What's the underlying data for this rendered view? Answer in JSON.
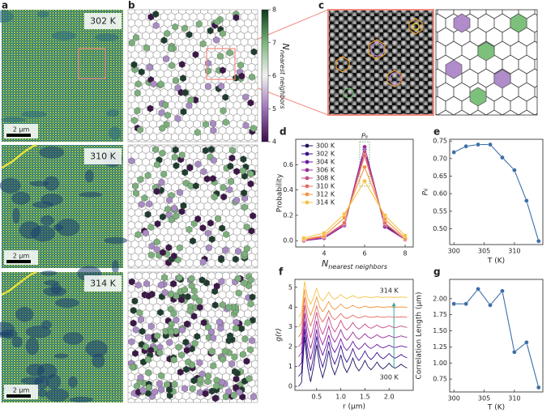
{
  "panels": {
    "a": {
      "label": "a",
      "temperatures": [
        "302 K",
        "310 K",
        "314 K"
      ],
      "scale_bar": "2 μm"
    },
    "b": {
      "label": "b"
    },
    "c": {
      "label": "c"
    }
  },
  "colorbar": {
    "label_main": "N",
    "label_sub": "nearest neighbors",
    "lim": [
      4,
      8
    ],
    "ticks": [
      4,
      5,
      6,
      7,
      8
    ],
    "colors": [
      "#3b0b4a",
      "#9d74b8",
      "#f2f2f2",
      "#7cb57c",
      "#0b3a1c"
    ]
  },
  "chart_data": [
    {
      "type": "line",
      "label": "d",
      "xlabel": {
        "main": "N",
        "sub": "nearest neighbors"
      },
      "ylabel": "Probability",
      "x": [
        3,
        4,
        5,
        6,
        7,
        8
      ],
      "xlim": [
        2.6,
        8.4
      ],
      "xticks": [
        4,
        6,
        8
      ],
      "ylim": [
        -0.05,
        0.8
      ],
      "yticks": [
        {
          "value": 0,
          "label": "0.0"
        },
        0.2,
        0.4,
        0.6
      ],
      "annotation": "P₆",
      "annotation_color": "#3aa655",
      "legend": "upper left",
      "series": [
        {
          "name": "300 K",
          "color": "#1b1464",
          "values": [
            0.0,
            0.02,
            0.12,
            0.72,
            0.12,
            0.01
          ]
        },
        {
          "name": "302 K",
          "color": "#3a0f8f",
          "values": [
            0.0,
            0.02,
            0.12,
            0.735,
            0.11,
            0.01
          ]
        },
        {
          "name": "304 K",
          "color": "#6b16a3",
          "values": [
            0.0,
            0.02,
            0.12,
            0.74,
            0.11,
            0.01
          ]
        },
        {
          "name": "306 K",
          "color": "#9b2c9b",
          "values": [
            0.0,
            0.02,
            0.12,
            0.74,
            0.11,
            0.01
          ]
        },
        {
          "name": "308 K",
          "color": "#c44a86",
          "values": [
            0.0,
            0.03,
            0.13,
            0.7,
            0.13,
            0.01
          ]
        },
        {
          "name": "310 K",
          "color": "#e26d63",
          "values": [
            0.01,
            0.03,
            0.14,
            0.67,
            0.14,
            0.01
          ]
        },
        {
          "name": "312 K",
          "color": "#f29640",
          "values": [
            0.01,
            0.04,
            0.18,
            0.58,
            0.17,
            0.02
          ]
        },
        {
          "name": "314 K",
          "color": "#f5c242",
          "values": [
            0.02,
            0.06,
            0.21,
            0.47,
            0.2,
            0.04
          ]
        }
      ]
    },
    {
      "type": "line",
      "label": "e",
      "xlabel": "T (K)",
      "ylabel": "P₆",
      "color": "#3d6ea8",
      "x": [
        300,
        302,
        304,
        306,
        308,
        310,
        312,
        314
      ],
      "values": [
        0.718,
        0.735,
        0.74,
        0.74,
        0.703,
        0.667,
        0.58,
        0.465
      ],
      "xlim": [
        299.3,
        314.7
      ],
      "xticks": [
        300,
        305,
        310
      ],
      "ylim": [
        0.455,
        0.755
      ],
      "yticks": [
        {
          "value": 0.5,
          "label": "0.50"
        },
        0.55,
        {
          "value": 0.6,
          "label": "0.60"
        },
        0.65,
        {
          "value": 0.7,
          "label": "0.70"
        },
        0.75
      ]
    },
    {
      "type": "curves",
      "label": "f",
      "xlabel": "r (μm)",
      "ylabel": "g(r)",
      "x": [
        0.125,
        0.1875,
        0.25,
        0.3125,
        0.375,
        0.4375,
        0.5,
        0.5625,
        0.625,
        0.6875,
        0.75,
        0.8125,
        0.875,
        0.9375,
        1,
        1.0625,
        1.125,
        1.1875,
        1.25,
        1.3125,
        1.375,
        1.4375,
        1.5,
        1.5625,
        1.625,
        1.6875,
        1.75,
        1.8125,
        1.875,
        1.9375,
        2,
        2.0625,
        2.125,
        2.1875,
        2.25,
        2.3125,
        2.375
      ],
      "xlim": [
        0.05,
        2.5
      ],
      "xticks": [
        {
          "value": 0.5,
          "label": "0.5"
        },
        {
          "value": 1,
          "label": "1.0"
        },
        {
          "value": 1.5,
          "label": "1.5"
        },
        {
          "value": 2,
          "label": "2.0"
        }
      ],
      "ylim": [
        -0.2,
        5.4
      ],
      "yticks": [
        0,
        1,
        2,
        3,
        4,
        5
      ],
      "annotations": [
        {
          "text": "314 K",
          "color": "#e8a91c"
        },
        {
          "text": "300 K",
          "color": "#2c2c8c"
        }
      ],
      "series": [
        {
          "color": "#1b1464",
          "values": [
            0,
            0.2,
            2.5,
            1,
            0.23,
            1,
            2.1,
            1,
            0.44,
            1,
            1.8,
            1,
            0.59,
            1,
            1.59,
            1,
            0.7,
            1,
            1.43,
            1,
            0.78,
            1,
            1.31,
            1,
            0.84,
            1,
            1.23,
            1,
            0.88,
            1,
            1.17,
            1,
            0.92,
            1,
            1.12,
            1,
            0.93
          ]
        },
        {
          "color": "#3a0f8f",
          "values": [
            0.5,
            0.7,
            2.9,
            1.5,
            0.78,
            1.5,
            2.52,
            1.5,
            0.97,
            1.5,
            2.25,
            1.5,
            1.12,
            1.5,
            2.05,
            1.5,
            1.22,
            1.5,
            1.9,
            1.5,
            1.3,
            1.5,
            1.79,
            1.5,
            1.35,
            1.5,
            1.71,
            1.5,
            1.39,
            1.5,
            1.66,
            1.5,
            1.42,
            1.5,
            1.61,
            1.5,
            1.44
          ]
        },
        {
          "color": "#6b16a3",
          "values": [
            1,
            1.2,
            3.3,
            2,
            1.36,
            2,
            2.87,
            2,
            1.57,
            2,
            2.59,
            2,
            1.71,
            2,
            2.4,
            2,
            1.81,
            2,
            2.27,
            2,
            1.87,
            2,
            2.18,
            2,
            1.91,
            2,
            2.12,
            2,
            1.94,
            2,
            2.08,
            2,
            1.96,
            2,
            2.05,
            2,
            1.98
          ]
        },
        {
          "color": "#9b2c9b",
          "values": [
            1.5,
            1.7,
            3.7,
            2.5,
            1.91,
            2.5,
            3.31,
            2.5,
            2.1,
            2.5,
            3.04,
            2.5,
            2.23,
            2.5,
            2.86,
            2.5,
            2.32,
            2.5,
            2.74,
            2.5,
            2.38,
            2.5,
            2.66,
            2.5,
            2.42,
            2.5,
            2.61,
            2.5,
            2.45,
            2.5,
            2.57,
            2.5,
            2.46,
            2.5,
            2.55,
            2.5,
            2.48
          ]
        },
        {
          "color": "#c44a86",
          "values": [
            2,
            2.2,
            4.1,
            3,
            2.46,
            3,
            3.74,
            3,
            2.63,
            3,
            3.5,
            3,
            2.75,
            3,
            3.33,
            3,
            2.84,
            3,
            3.22,
            3,
            2.89,
            3,
            3.15,
            3,
            2.93,
            3,
            3.1,
            3,
            2.95,
            3,
            3.07,
            3,
            2.96,
            3,
            3.05,
            3,
            2.98
          ]
        },
        {
          "color": "#e26d63",
          "values": [
            2.5,
            2.7,
            4.5,
            3.5,
            3.05,
            3.5,
            4.06,
            3.5,
            3.25,
            3.5,
            3.82,
            3.5,
            3.36,
            3.5,
            3.68,
            3.5,
            3.42,
            3.5,
            3.6,
            3.5,
            3.45,
            3.5,
            3.56,
            3.5,
            3.48,
            3.5,
            3.53,
            3.5,
            3.49,
            3.5,
            3.52,
            3.5,
            3.49,
            3.5,
            3.51,
            3.5,
            3.49
          ]
        },
        {
          "color": "#f29640",
          "values": [
            3,
            3.2,
            4.9,
            4,
            3.59,
            4,
            4.51,
            4,
            3.77,
            4,
            4.28,
            4,
            3.87,
            4,
            4.16,
            4,
            3.93,
            4,
            4.09,
            4,
            3.96,
            4,
            4.05,
            4,
            3.98,
            4,
            4.03,
            4,
            3.99,
            4,
            4.02,
            4,
            3.99,
            4,
            4.01,
            4,
            3.99
          ]
        },
        {
          "color": "#f5c242",
          "values": [
            3.5,
            3.7,
            5.3,
            4.5,
            4.14,
            4.5,
            4.95,
            4.5,
            4.3,
            4.5,
            4.75,
            4.5,
            4.39,
            4.5,
            4.64,
            4.5,
            4.43,
            4.5,
            4.58,
            4.5,
            4.46,
            4.5,
            4.54,
            4.5,
            4.48,
            4.5,
            4.53,
            4.5,
            4.49,
            4.5,
            4.51,
            4.5,
            4.49,
            4.5,
            4.51,
            4.5,
            4.49
          ]
        }
      ]
    },
    {
      "type": "line",
      "label": "g",
      "xlabel": "T (K)",
      "ylabel": "Correlation Length (μm)",
      "color": "#3d6ea8",
      "x": [
        300,
        302,
        304,
        306,
        308,
        310,
        312,
        314
      ],
      "values": [
        1.92,
        1.92,
        2.15,
        1.9,
        2.12,
        1.17,
        1.32,
        0.62
      ],
      "xlim": [
        299.3,
        314.7
      ],
      "xticks": [
        300,
        305,
        310
      ],
      "ylim": [
        0.55,
        2.3
      ],
      "yticks": [
        0.75,
        {
          "value": 1,
          "label": "1.00"
        },
        1.25,
        {
          "value": 1.5,
          "label": "1.50"
        },
        1.75,
        {
          "value": 2,
          "label": "2.00"
        }
      ]
    }
  ]
}
